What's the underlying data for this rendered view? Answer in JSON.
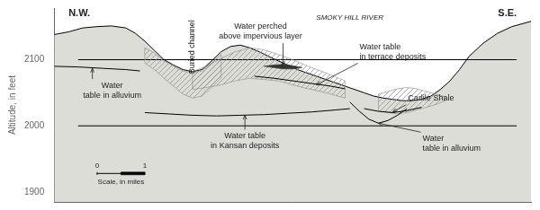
{
  "chart_data": {
    "type": "line",
    "y_label": "Altitude, in feet",
    "xlim": [
      0,
      100
    ],
    "ylim": [
      1885,
      2178
    ],
    "yticks": [
      1900,
      2000,
      2100
    ],
    "tick_labels": "y",
    "grid": false,
    "series": [
      {
        "type": "area",
        "color": "#ddddd8",
        "x": [
          0,
          3,
          6,
          9,
          12,
          15,
          17,
          19,
          21,
          23,
          25,
          27,
          29,
          31,
          33,
          35,
          37,
          39,
          41,
          43,
          45,
          47,
          49,
          51,
          53,
          55,
          57,
          59,
          61,
          63,
          65,
          67,
          69,
          71,
          73,
          75,
          77,
          79,
          81,
          83,
          85,
          87,
          90,
          93,
          96,
          100
        ],
        "values": [
          2138,
          2142,
          2148,
          2150,
          2151,
          2148,
          2140,
          2128,
          2114,
          2100,
          2092,
          2085,
          2082,
          2085,
          2098,
          2112,
          2120,
          2122,
          2118,
          2112,
          2105,
          2098,
          2092,
          2085,
          2080,
          2075,
          2070,
          2065,
          2060,
          2055,
          2050,
          2045,
          2042,
          2040,
          2038,
          2038,
          2040,
          2045,
          2055,
          2068,
          2085,
          2105,
          2125,
          2140,
          2150,
          2158
        ]
      },
      {
        "type": "line",
        "color": "black",
        "x": [
          5,
          97
        ],
        "values": [
          2000,
          2000
        ]
      },
      {
        "type": "line",
        "color": "black",
        "x": [
          5,
          97
        ],
        "values": [
          2100,
          2100
        ]
      },
      {
        "type": "hatched",
        "color": "#888888",
        "x": [
          19,
          21,
          23,
          25,
          27,
          29,
          31,
          33,
          35,
          35,
          33,
          31,
          29,
          27,
          25,
          23,
          21,
          19
        ],
        "values": [
          2118,
          2110,
          2098,
          2090,
          2083,
          2080,
          2083,
          2095,
          2108,
          2072,
          2058,
          2045,
          2042,
          2048,
          2060,
          2072,
          2085,
          2095
        ]
      },
      {
        "type": "hatched",
        "color": "#888888",
        "x": [
          29,
          32,
          35,
          38,
          41,
          44,
          47,
          50,
          52,
          54,
          57,
          59,
          61,
          61,
          59,
          57,
          54,
          52,
          50,
          47,
          44,
          41,
          38,
          35,
          32,
          29
        ],
        "values": [
          2082,
          2090,
          2102,
          2112,
          2118,
          2115,
          2108,
          2100,
          2094,
          2088,
          2080,
          2074,
          2068,
          2042,
          2046,
          2050,
          2055,
          2058,
          2062,
          2068,
          2070,
          2072,
          2068,
          2062,
          2058,
          2055
        ]
      },
      {
        "type": "hatched",
        "color": "#888888",
        "x": [
          68,
          70,
          72,
          74,
          76,
          78,
          80,
          82,
          82,
          80,
          78,
          76,
          74,
          72,
          70,
          68
        ],
        "values": [
          2048,
          2052,
          2056,
          2058,
          2056,
          2052,
          2048,
          2044,
          2038,
          2032,
          2028,
          2024,
          2020,
          2018,
          2020,
          2022
        ]
      },
      {
        "type": "line",
        "color": "black",
        "x": [
          0,
          5,
          10,
          15,
          18
        ],
        "values": [
          2090,
          2089,
          2087,
          2085,
          2083
        ]
      },
      {
        "type": "line",
        "color": "black",
        "x": [
          19,
          24,
          29,
          34,
          39,
          44,
          49,
          54,
          59,
          62
        ],
        "values": [
          2020,
          2018,
          2016,
          2015,
          2016,
          2017,
          2019,
          2021,
          2024,
          2026
        ]
      },
      {
        "type": "line",
        "color": "black",
        "x": [
          42,
          46,
          50,
          54,
          58,
          61
        ],
        "values": [
          2075,
          2072,
          2068,
          2064,
          2060,
          2056
        ]
      },
      {
        "type": "line",
        "color": "black",
        "x": [
          62,
          64,
          66,
          68,
          70,
          72,
          74
        ],
        "values": [
          2036,
          2022,
          2010,
          2004,
          2008,
          2016,
          2026
        ]
      },
      {
        "type": "line",
        "color": "black",
        "x": [
          65,
          68,
          71,
          74,
          77
        ],
        "values": [
          2026,
          2022,
          2020,
          2023,
          2028
        ]
      },
      {
        "type": "polygon",
        "color": "#333333",
        "x": [
          44,
          46,
          48,
          50,
          52,
          50,
          48,
          46
        ],
        "values": [
          2090,
          2092,
          2093,
          2091,
          2088,
          2086,
          2086,
          2088
        ]
      },
      {
        "type": "line",
        "color": "black",
        "x": [
          9,
          19
        ],
        "values": [
          1928,
          1928
        ]
      },
      {
        "type": "line",
        "color": "black",
        "x": [
          9,
          9
        ],
        "values": [
          1926,
          1930
        ]
      },
      {
        "type": "line",
        "color": "black",
        "x": [
          14,
          14
        ],
        "values": [
          1926.5,
          1929.5
        ]
      },
      {
        "type": "line",
        "color": "black",
        "x": [
          19,
          19
        ],
        "values": [
          1926,
          1930
        ]
      },
      {
        "type": "polygon",
        "color": "black",
        "x": [
          14,
          19,
          19,
          14
        ],
        "values": [
          1926,
          1926,
          1930,
          1930
        ]
      }
    ],
    "annotations": [
      {
        "text": "N.W.",
        "x": 3,
        "y": 2170
      },
      {
        "text": "S.E.",
        "x": 97,
        "y": 2170
      },
      {
        "text": "Buried channel",
        "x": 29,
        "y": 2160
      },
      {
        "text": "SMOKY HILL RIVER",
        "x": 62,
        "y": 2170
      },
      {
        "text": "Water\ntable in alluvium",
        "point": [
          8,
          2087
        ]
      },
      {
        "text": "Water perched\nabove impervious layer",
        "point": [
          48,
          2091
        ]
      },
      {
        "text": "Water table\nin terrace deposits",
        "point": [
          55,
          2062
        ]
      },
      {
        "text": "Water table\nin Kansan deposits",
        "point": [
          40,
          2016
        ]
      },
      {
        "text": "Carlile Shale",
        "point": [
          71,
          2021
        ]
      },
      {
        "text": "Water\ntable in alluvium",
        "point": [
          68,
          2004
        ]
      },
      {
        "text": "0",
        "x": 9,
        "y": 1932
      },
      {
        "text": "1",
        "x": 19,
        "y": 1932
      },
      {
        "text": "Scale, in miles",
        "x": 14,
        "y": 1921
      }
    ]
  }
}
